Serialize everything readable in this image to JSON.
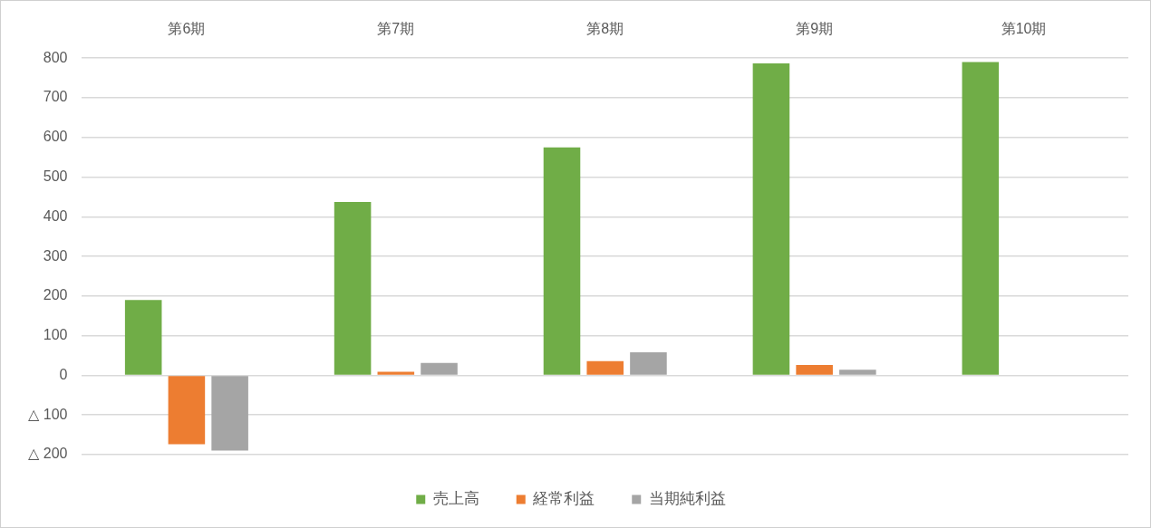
{
  "chart_data": {
    "type": "bar",
    "categories": [
      "第6期",
      "第7期",
      "第8期",
      "第9期",
      "第10期"
    ],
    "series": [
      {
        "name": "売上高",
        "color": "#70ad47",
        "values": [
          190,
          437,
          575,
          787,
          790
        ]
      },
      {
        "name": "経常利益",
        "color": "#ed7d31",
        "values": [
          -174,
          9,
          36,
          26,
          null
        ]
      },
      {
        "name": "当期純利益",
        "color": "#a5a5a5",
        "values": [
          -190,
          31,
          58,
          14,
          null
        ]
      }
    ],
    "ylim": [
      -200,
      800
    ],
    "yticks": [
      {
        "value": -200,
        "label": "△ 200"
      },
      {
        "value": -100,
        "label": "△ 100"
      },
      0,
      100,
      200,
      300,
      400,
      500,
      600,
      700,
      800
    ],
    "grid": "y",
    "legend": "bottom"
  }
}
